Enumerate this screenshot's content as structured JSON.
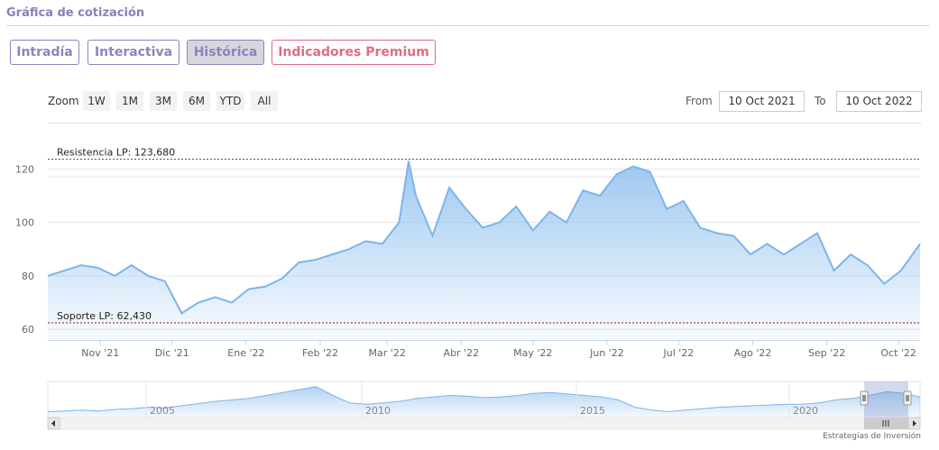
{
  "header": {
    "title": "Gráfica de cotización"
  },
  "tabs": [
    {
      "label": "Intradía",
      "active": false
    },
    {
      "label": "Interactiva",
      "active": false
    },
    {
      "label": "Histórica",
      "active": true
    },
    {
      "label": "Indicadores Premium",
      "active": false
    }
  ],
  "toolbar": {
    "zoom_label": "Zoom",
    "zoom_buttons": [
      "1W",
      "1M",
      "3M",
      "6M",
      "YTD",
      "All"
    ],
    "from_label": "From",
    "from_value": "10 Oct 2021",
    "to_label": "To",
    "to_value": "10 Oct 2022"
  },
  "colors": {
    "accent": "#8d84bb",
    "premium": "#e36b80",
    "series": "#7cb5ec",
    "resistance": "#1e7b1e",
    "support": "#8b1a1a"
  },
  "chart_data": {
    "type": "area",
    "title": "",
    "xlabel": "",
    "ylabel": "",
    "x_tick_labels": [
      "Nov '21",
      "Dic '21",
      "Ene '22",
      "Feb '22",
      "Mar '22",
      "Abr '22",
      "May '22",
      "Jun '22",
      "Jul '22",
      "Ago '22",
      "Sep '22",
      "Oct '22"
    ],
    "y_tick_labels": [
      "60",
      "80",
      "100",
      "120"
    ],
    "ylim": [
      56,
      136
    ],
    "grid": true,
    "annotations": [
      {
        "label": "Resistencia LP: 123,680",
        "value": 123.68,
        "style": "dashed"
      },
      {
        "label": "Soporte LP: 62,430",
        "value": 62.43,
        "style": "dashed"
      }
    ],
    "series": [
      {
        "x": [
          "2021-10-10",
          "2021-10-17",
          "2021-10-24",
          "2021-10-31",
          "2021-11-07",
          "2021-11-14",
          "2021-11-21",
          "2021-11-28",
          "2021-12-05",
          "2021-12-12",
          "2021-12-19",
          "2021-12-26",
          "2022-01-02",
          "2022-01-09",
          "2022-01-16",
          "2022-01-23",
          "2022-01-30",
          "2022-02-06",
          "2022-02-13",
          "2022-02-20",
          "2022-02-27",
          "2022-03-06",
          "2022-03-10",
          "2022-03-13",
          "2022-03-20",
          "2022-03-27",
          "2022-04-03",
          "2022-04-10",
          "2022-04-17",
          "2022-04-24",
          "2022-05-01",
          "2022-05-08",
          "2022-05-15",
          "2022-05-22",
          "2022-05-29",
          "2022-06-05",
          "2022-06-12",
          "2022-06-19",
          "2022-06-26",
          "2022-07-03",
          "2022-07-10",
          "2022-07-17",
          "2022-07-24",
          "2022-07-31",
          "2022-08-07",
          "2022-08-14",
          "2022-08-21",
          "2022-08-28",
          "2022-09-04",
          "2022-09-11",
          "2022-09-18",
          "2022-09-25",
          "2022-10-02",
          "2022-10-10"
        ],
        "values": [
          80,
          82,
          84,
          83,
          80,
          84,
          80,
          78,
          66,
          70,
          72,
          70,
          75,
          76,
          79,
          85,
          86,
          88,
          90,
          93,
          92,
          100,
          123,
          110,
          95,
          113,
          105,
          98,
          100,
          106,
          97,
          104,
          100,
          112,
          110,
          118,
          121,
          119,
          105,
          108,
          98,
          96,
          95,
          88,
          92,
          88,
          92,
          96,
          82,
          88,
          84,
          77,
          82,
          92
        ]
      }
    ],
    "navigator": {
      "x_tick_labels": [
        "2005",
        "2010",
        "2015",
        "2020"
      ],
      "values": [
        8,
        9,
        10,
        9,
        11,
        12,
        14,
        13,
        16,
        19,
        22,
        24,
        26,
        30,
        34,
        38,
        42,
        30,
        20,
        18,
        20,
        22,
        26,
        28,
        30,
        29,
        27,
        28,
        30,
        33,
        34,
        32,
        30,
        28,
        24,
        14,
        10,
        8,
        10,
        12,
        14,
        15,
        16,
        17,
        18,
        18,
        20,
        24,
        26,
        30,
        35,
        33,
        28
      ]
    }
  },
  "footer": {
    "credit": "Estrategias de Inversión"
  }
}
